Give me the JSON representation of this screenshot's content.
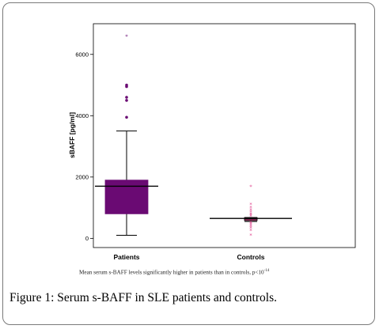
{
  "figure": {
    "label": "Figure 1:",
    "text": "Serum s-BAFF in SLE patients and controls."
  },
  "note": {
    "text": "Mean serum s-BAFF levels significantly higher in patients than in controls, p<10",
    "exponent": "-14"
  },
  "chart_data": {
    "type": "box",
    "ylabel": "sBAFF [pg/ml]",
    "xlabel": "",
    "ylim": [
      -300,
      7000
    ],
    "yticks": [
      0,
      2000,
      4000,
      6000
    ],
    "categories": [
      "Patients",
      "Controls"
    ],
    "groups": [
      {
        "name": "Patients",
        "color": "#6a0a73",
        "whisker_low": 100,
        "q1": 800,
        "median": 1700,
        "q3": 1900,
        "whisker_high": 3500,
        "mean": 1700,
        "outliers": [
          3950,
          4500,
          4600,
          4950,
          5000
        ],
        "extremes": [
          6600
        ]
      },
      {
        "name": "Controls",
        "color": "#e0458e",
        "whisker_low": 550,
        "q1": 580,
        "median": 630,
        "q3": 680,
        "whisker_high": 680,
        "mean": 650,
        "outliers": [
          100,
          250,
          330,
          380,
          430,
          470,
          510,
          720,
          760,
          800,
          860,
          920,
          1000,
          1100
        ],
        "extremes": [
          1700
        ]
      }
    ],
    "grid": false,
    "legend": "none"
  }
}
